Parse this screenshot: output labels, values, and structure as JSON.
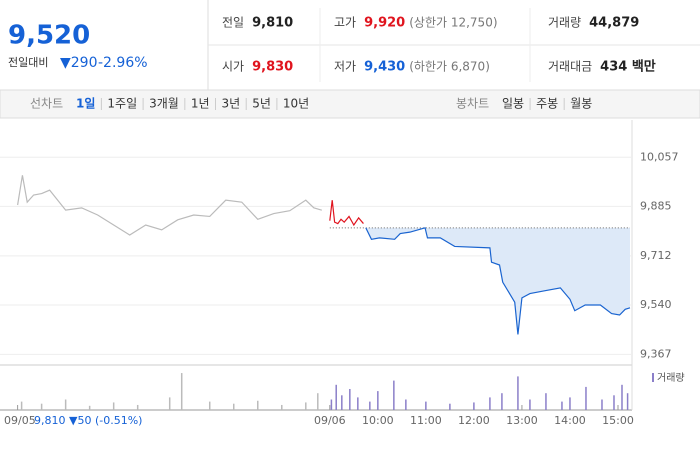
{
  "quote": {
    "price": "9,520",
    "change_label": "전일대비",
    "change": "▼290",
    "change_pct": "-2.96%"
  },
  "stats": [
    {
      "label": "전일",
      "value": "9,810",
      "color": "#222"
    },
    {
      "label": "고가",
      "value": "9,920",
      "note": "(상한가 12,750)",
      "color": "#e0141e"
    },
    {
      "label": "거래량",
      "value": "44,879",
      "color": "#222"
    },
    {
      "label": "시가",
      "value": "9,830",
      "color": "#e0141e"
    },
    {
      "label": "저가",
      "value": "9,430",
      "note": "(하한가 6,870)",
      "color": "#1561d6"
    },
    {
      "label": "거래대금",
      "value": "434 백만",
      "color": "#222"
    }
  ],
  "tabs": {
    "line_label": "선차트",
    "line": [
      "1일",
      "1주일",
      "3개월",
      "1년",
      "3년",
      "5년",
      "10년"
    ],
    "active": "1일",
    "candle_label": "봉차트",
    "candle": [
      "일봉",
      "주봉",
      "월봉"
    ]
  },
  "chart_data": {
    "type": "line",
    "xlim": [
      -412,
      375
    ],
    "ylim": [
      9330,
      10170
    ],
    "yticks": [
      {
        "value": 10057,
        "label": "10,057"
      },
      {
        "value": 9885,
        "label": "9,885"
      },
      {
        "value": 9712,
        "label": "9,712"
      },
      {
        "value": 9540,
        "label": "9,540"
      },
      {
        "value": 9367,
        "label": "9,367"
      }
    ],
    "xticks": [
      {
        "value": -390,
        "label": "09/05"
      },
      {
        "value": 0,
        "label": "09/06"
      },
      {
        "value": 60,
        "label": "10:00"
      },
      {
        "value": 120,
        "label": "11:00"
      },
      {
        "value": 180,
        "label": "12:00"
      },
      {
        "value": 240,
        "label": "13:00"
      },
      {
        "value": 300,
        "label": "14:00"
      },
      {
        "value": 360,
        "label": "15:00"
      }
    ],
    "prev_close": 9810,
    "grid": true,
    "area_color": "#dde9f8",
    "series": [
      {
        "color": "#bbbbbb",
        "x": [
          -390,
          -384,
          -378,
          -370,
          -360,
          -350,
          -330,
          -310,
          -290,
          -270,
          -250,
          -230,
          -210,
          -190,
          -170,
          -150,
          -130,
          -110,
          -90,
          -70,
          -50,
          -30,
          -20,
          -10
        ],
        "values": [
          9890,
          9994,
          9900,
          9925,
          9930,
          9942,
          9872,
          9880,
          9855,
          9820,
          9785,
          9820,
          9803,
          9838,
          9855,
          9850,
          9907,
          9900,
          9840,
          9860,
          9870,
          9907,
          9880,
          9872
        ]
      },
      {
        "color": "#e0141e",
        "x": [
          0,
          3,
          6,
          10,
          14,
          18,
          24,
          30,
          36,
          42
        ],
        "values": [
          9835,
          9907,
          9830,
          9825,
          9840,
          9830,
          9850,
          9820,
          9845,
          9825
        ]
      },
      {
        "color": "#1a64d0",
        "x": [
          45,
          52,
          62,
          81,
          88,
          100,
          119,
          122,
          138,
          156,
          200,
          202,
          212,
          216,
          231,
          235,
          240,
          250,
          269,
          288,
          300,
          306,
          319,
          338,
          352,
          362,
          369,
          375
        ],
        "values": [
          9810,
          9770,
          9775,
          9770,
          9790,
          9795,
          9810,
          9775,
          9775,
          9745,
          9740,
          9690,
          9680,
          9620,
          9550,
          9437,
          9565,
          9580,
          9590,
          9600,
          9560,
          9520,
          9540,
          9540,
          9510,
          9505,
          9525,
          9530
        ]
      }
    ],
    "volume": {
      "legend": "거래량",
      "vlim": [
        0,
        100
      ],
      "x": [
        -385,
        -360,
        -330,
        -300,
        -270,
        -240,
        -200,
        -185,
        -150,
        -120,
        -90,
        -60,
        -30,
        -15,
        2,
        8,
        15,
        25,
        35,
        50,
        60,
        80,
        95,
        120,
        150,
        180,
        200,
        215,
        235,
        250,
        270,
        290,
        300,
        320,
        340,
        355,
        365,
        372
      ],
      "values": [
        20,
        15,
        25,
        10,
        18,
        12,
        30,
        88,
        20,
        15,
        22,
        12,
        18,
        40,
        25,
        60,
        35,
        50,
        30,
        20,
        45,
        70,
        25,
        20,
        15,
        18,
        30,
        40,
        80,
        25,
        40,
        20,
        30,
        55,
        25,
        35,
        60,
        40
      ],
      "colors": [
        "#bbbbbb",
        "#8b7fc9"
      ]
    },
    "prev_info": "9,810 ▼50 (-0.51%)"
  }
}
